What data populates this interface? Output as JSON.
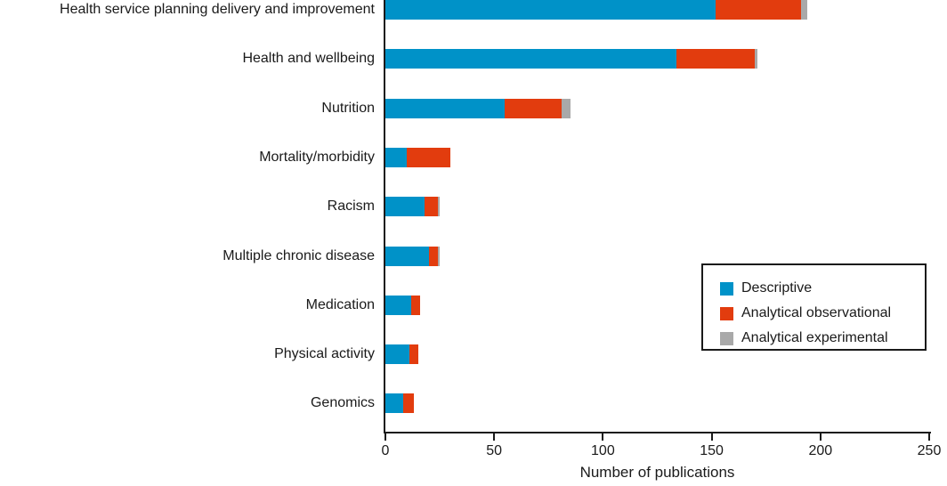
{
  "figure": {
    "x_axis_title": "Number of publications"
  },
  "chart_data": {
    "type": "bar",
    "orientation": "horizontal",
    "stacked": true,
    "title": "",
    "xlabel": "Number of publications",
    "ylabel": "",
    "xlim": [
      0,
      250
    ],
    "xticks": [
      0,
      50,
      100,
      150,
      200,
      250
    ],
    "grid": false,
    "legend_position": "right-middle boxed",
    "axis_color": "#1a1a1a",
    "categories": [
      "Health service planning delivery and improvement",
      "Health and wellbeing",
      "Nutrition",
      "Mortality/morbidity",
      "Racism",
      "Multiple chronic disease",
      "Medication",
      "Physical activity",
      "Genomics"
    ],
    "series": [
      {
        "name": "Descriptive",
        "color": "#0092c8",
        "values": [
          152,
          134,
          55,
          10,
          18,
          20,
          12,
          11,
          8
        ]
      },
      {
        "name": "Analytical observational",
        "color": "#e23c0e",
        "values": [
          39,
          36,
          26,
          20,
          6,
          4,
          4,
          4,
          5
        ]
      },
      {
        "name": "Analytical experimental",
        "color": "#a9a9a9",
        "values": [
          3,
          1,
          4,
          0,
          1,
          1,
          0,
          0,
          0
        ]
      }
    ],
    "totals": [
      194,
      171,
      85,
      30,
      25,
      25,
      16,
      15,
      13
    ]
  }
}
